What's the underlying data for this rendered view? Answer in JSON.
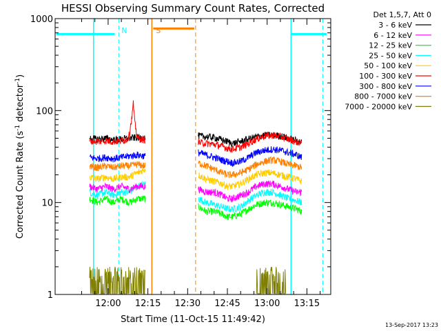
{
  "chart_data": {
    "type": "line",
    "title": "HESSI Observing Summary Count Rates, Corrected",
    "xlabel": "Start Time (11-Oct-15 11:49:42)",
    "ylabel_main": "Corrected Count Rate (s",
    "ylabel_sup1": "-1",
    "ylabel_mid": " detector",
    "ylabel_sup2": "-1",
    "ylabel_end": ")",
    "yscale": "log",
    "ylim": [
      1,
      1000
    ],
    "xlim_minutes": [
      700,
      804
    ],
    "x_ticks": [
      {
        "label": "12:00",
        "m": 720
      },
      {
        "label": "12:15",
        "m": 735
      },
      {
        "label": "12:30",
        "m": 750
      },
      {
        "label": "12:45",
        "m": 765
      },
      {
        "label": "13:00",
        "m": 780
      },
      {
        "label": "13:15",
        "m": 795
      }
    ],
    "y_ticks": [
      {
        "label": "1",
        "v": 1
      },
      {
        "label": "10",
        "v": 10
      },
      {
        "label": "100",
        "v": 100
      },
      {
        "label": "1000",
        "v": 1000
      }
    ],
    "legend": {
      "header": "Det 1,5,7, Att 0",
      "placement": "right"
    },
    "series": [
      {
        "name": "3 - 6 keV",
        "color": "#000000",
        "seg1": [
          [
            713,
            50
          ],
          [
            716,
            49
          ],
          [
            719,
            50
          ],
          [
            722,
            48
          ],
          [
            725,
            49
          ],
          [
            728,
            50
          ],
          [
            731,
            51
          ],
          [
            734,
            50
          ]
        ],
        "seg2": [
          [
            754,
            53
          ],
          [
            757,
            52
          ],
          [
            760,
            51
          ],
          [
            763,
            48
          ],
          [
            765,
            46
          ],
          [
            767,
            44
          ],
          [
            770,
            46
          ],
          [
            773,
            49
          ],
          [
            776,
            52
          ],
          [
            779,
            54
          ],
          [
            782,
            54
          ],
          [
            785,
            53
          ],
          [
            788,
            50
          ],
          [
            791,
            47
          ],
          [
            793,
            45
          ]
        ]
      },
      {
        "name": "6 - 12 keV",
        "color": "#ff00ff",
        "seg1": [
          [
            713,
            15
          ],
          [
            716,
            14
          ],
          [
            719,
            15
          ],
          [
            722,
            14
          ],
          [
            725,
            15
          ],
          [
            728,
            14
          ],
          [
            731,
            15
          ],
          [
            734,
            15
          ]
        ],
        "seg2": [
          [
            754,
            14
          ],
          [
            757,
            13
          ],
          [
            760,
            13
          ],
          [
            763,
            12
          ],
          [
            765,
            11
          ],
          [
            767,
            11
          ],
          [
            770,
            12
          ],
          [
            773,
            13
          ],
          [
            776,
            15
          ],
          [
            779,
            16
          ],
          [
            782,
            16
          ],
          [
            785,
            15
          ],
          [
            788,
            14
          ],
          [
            791,
            13
          ],
          [
            793,
            13
          ]
        ]
      },
      {
        "name": "12 - 25 keV",
        "color": "#00ff00",
        "seg1": [
          [
            713,
            11
          ],
          [
            716,
            10
          ],
          [
            719,
            11
          ],
          [
            722,
            10
          ],
          [
            725,
            11
          ],
          [
            728,
            10
          ],
          [
            731,
            11
          ],
          [
            734,
            11
          ]
        ],
        "seg2": [
          [
            754,
            9
          ],
          [
            757,
            8
          ],
          [
            760,
            8
          ],
          [
            763,
            7.5
          ],
          [
            765,
            7
          ],
          [
            767,
            7
          ],
          [
            770,
            7.5
          ],
          [
            773,
            8.5
          ],
          [
            776,
            9.5
          ],
          [
            779,
            10
          ],
          [
            782,
            10
          ],
          [
            785,
            9.5
          ],
          [
            788,
            9
          ],
          [
            791,
            8.5
          ],
          [
            793,
            8
          ]
        ]
      },
      {
        "name": "25 - 50 keV",
        "color": "#00ffff",
        "seg1": [
          [
            713,
            13
          ],
          [
            716,
            12
          ],
          [
            719,
            13
          ],
          [
            722,
            12
          ],
          [
            725,
            13
          ],
          [
            728,
            13
          ],
          [
            731,
            15
          ],
          [
            734,
            16
          ]
        ],
        "seg2": [
          [
            754,
            11
          ],
          [
            757,
            10
          ],
          [
            760,
            9.5
          ],
          [
            763,
            9
          ],
          [
            765,
            8.5
          ],
          [
            767,
            8.5
          ],
          [
            770,
            9
          ],
          [
            773,
            10.5
          ],
          [
            776,
            12
          ],
          [
            779,
            13
          ],
          [
            782,
            13
          ],
          [
            785,
            12
          ],
          [
            788,
            11
          ],
          [
            791,
            10.5
          ],
          [
            793,
            10
          ]
        ]
      },
      {
        "name": "50 - 100 keV",
        "color": "#ffcc00",
        "seg1": [
          [
            713,
            19
          ],
          [
            716,
            18
          ],
          [
            719,
            19
          ],
          [
            722,
            18
          ],
          [
            725,
            19
          ],
          [
            728,
            19
          ],
          [
            731,
            21
          ],
          [
            734,
            23
          ]
        ],
        "seg2": [
          [
            754,
            20
          ],
          [
            757,
            18
          ],
          [
            760,
            17
          ],
          [
            763,
            16
          ],
          [
            765,
            15
          ],
          [
            767,
            15
          ],
          [
            770,
            16
          ],
          [
            773,
            18
          ],
          [
            776,
            20
          ],
          [
            779,
            21
          ],
          [
            782,
            21
          ],
          [
            785,
            20
          ],
          [
            788,
            19
          ],
          [
            791,
            18
          ],
          [
            793,
            17
          ]
        ]
      },
      {
        "name": "100 - 300 keV",
        "color": "#ff0000",
        "seg1": [
          [
            713,
            47
          ],
          [
            716,
            46
          ],
          [
            719,
            47
          ],
          [
            722,
            46
          ],
          [
            725,
            47
          ],
          [
            727,
            48
          ],
          [
            728,
            55
          ],
          [
            729,
            85
          ],
          [
            729.5,
            120
          ],
          [
            730,
            75
          ],
          [
            731,
            50
          ],
          [
            734,
            48
          ]
        ],
        "seg2": [
          [
            754,
            45
          ],
          [
            757,
            44
          ],
          [
            760,
            43
          ],
          [
            763,
            41
          ],
          [
            765,
            39
          ],
          [
            767,
            38
          ],
          [
            770,
            40
          ],
          [
            773,
            44
          ],
          [
            776,
            49
          ],
          [
            779,
            53
          ],
          [
            782,
            54
          ],
          [
            785,
            52
          ],
          [
            788,
            49
          ],
          [
            791,
            46
          ],
          [
            793,
            44
          ]
        ]
      },
      {
        "name": "300 - 800 keV",
        "color": "#0000ff",
        "seg1": [
          [
            713,
            31
          ],
          [
            716,
            30
          ],
          [
            719,
            31
          ],
          [
            722,
            30
          ],
          [
            725,
            31
          ],
          [
            728,
            32
          ],
          [
            731,
            33
          ],
          [
            734,
            32
          ]
        ],
        "seg2": [
          [
            754,
            35
          ],
          [
            757,
            33
          ],
          [
            760,
            31
          ],
          [
            763,
            29
          ],
          [
            765,
            28
          ],
          [
            767,
            27
          ],
          [
            770,
            28
          ],
          [
            773,
            31
          ],
          [
            776,
            35
          ],
          [
            779,
            37
          ],
          [
            782,
            38
          ],
          [
            785,
            37
          ],
          [
            788,
            35
          ],
          [
            791,
            33
          ],
          [
            793,
            31
          ]
        ]
      },
      {
        "name": "800 - 7000 keV",
        "color": "#ff8000",
        "seg1": [
          [
            713,
            25
          ],
          [
            716,
            24
          ],
          [
            719,
            25
          ],
          [
            722,
            24
          ],
          [
            725,
            25
          ],
          [
            728,
            25
          ],
          [
            731,
            26
          ],
          [
            734,
            25
          ]
        ],
        "seg2": [
          [
            754,
            27
          ],
          [
            757,
            25
          ],
          [
            760,
            23
          ],
          [
            763,
            21
          ],
          [
            765,
            20
          ],
          [
            767,
            20
          ],
          [
            770,
            21
          ],
          [
            773,
            23
          ],
          [
            776,
            26
          ],
          [
            779,
            28
          ],
          [
            782,
            29
          ],
          [
            785,
            28
          ],
          [
            788,
            26
          ],
          [
            791,
            25
          ],
          [
            793,
            24
          ]
        ]
      },
      {
        "name": "7000 - 20000 keV",
        "color": "#808000",
        "seg1": [
          [
            713,
            1.3
          ],
          [
            716,
            1.5
          ],
          [
            719,
            1.4
          ],
          [
            722,
            1.6
          ],
          [
            725,
            1.4
          ],
          [
            728,
            1.5
          ],
          [
            731,
            1.3
          ],
          [
            734,
            1.4
          ]
        ],
        "seg2": [
          [
            776,
            1.4
          ],
          [
            779,
            1.8
          ],
          [
            782,
            1.6
          ],
          [
            785,
            1.5
          ],
          [
            787,
            1.3
          ]
        ]
      }
    ],
    "annotations": [
      {
        "text": "N",
        "color": "#00ffff",
        "m": 724
      },
      {
        "text": "S",
        "color": "#ff8000",
        "m": 737
      }
    ],
    "footer_date": "13-Sep-2017 13:23"
  }
}
